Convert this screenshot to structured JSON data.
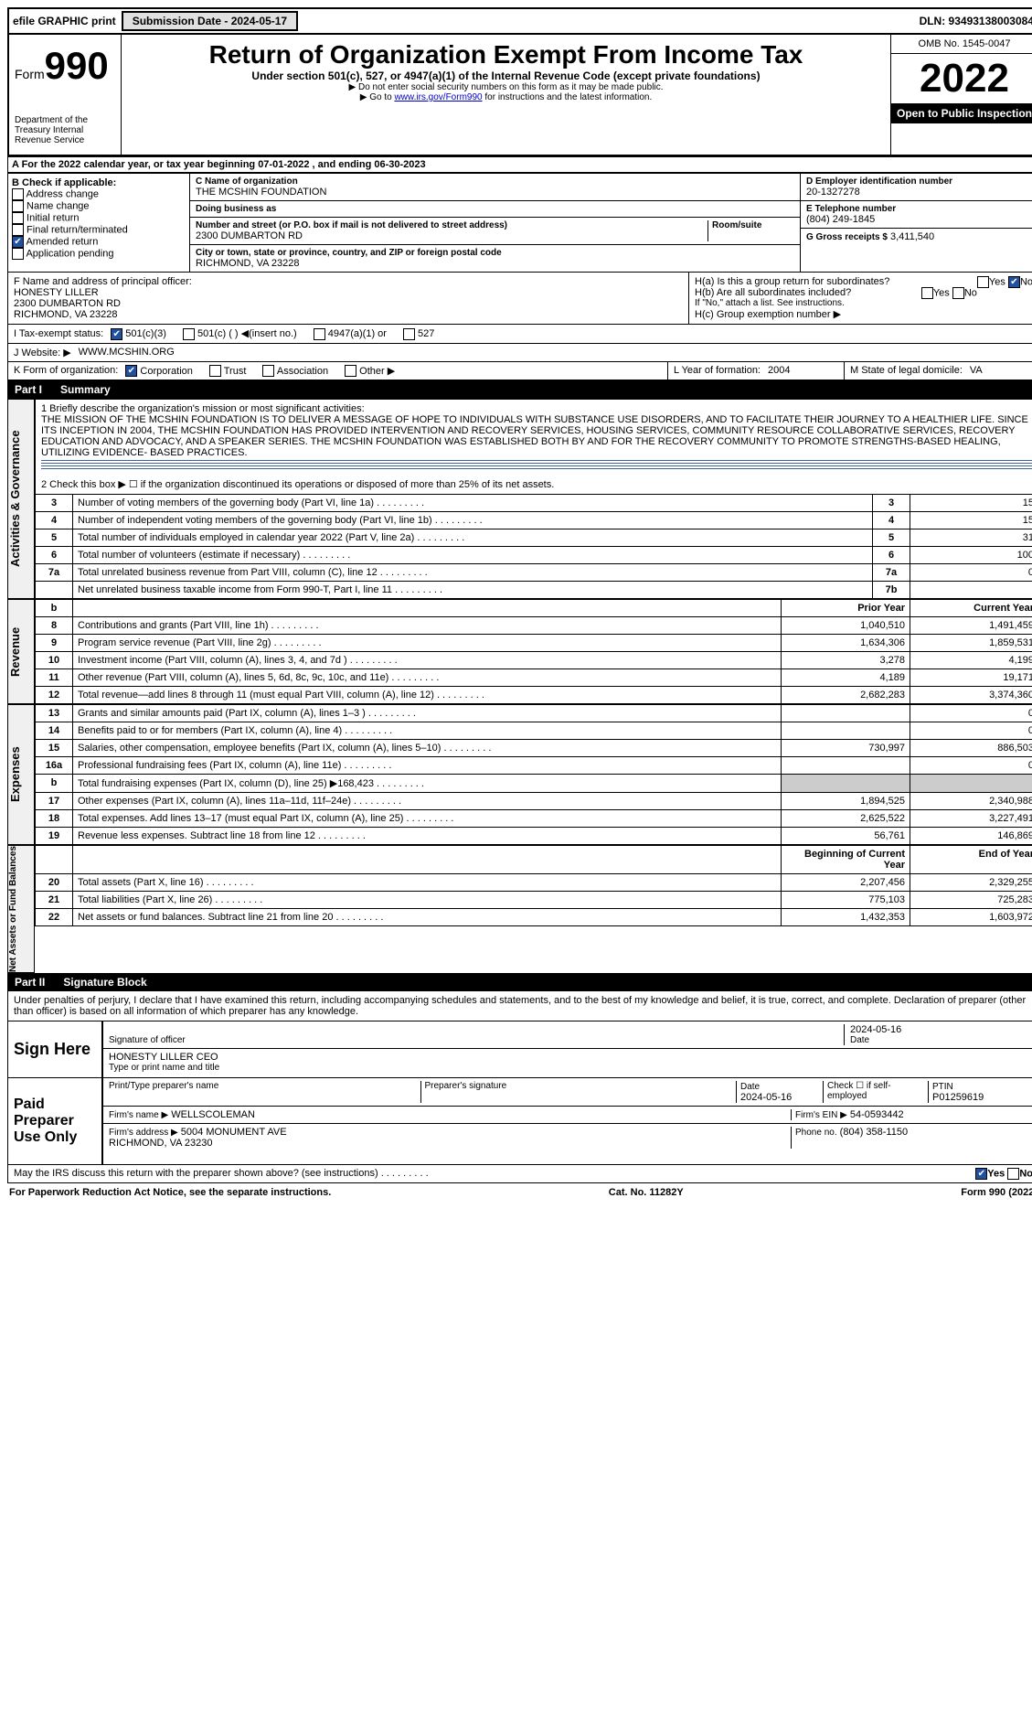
{
  "topbar": {
    "efile": "efile GRAPHIC print",
    "submit_btn": "Submission Date - 2024-05-17",
    "dln": "DLN: 93493138003084"
  },
  "header": {
    "form_label": "Form",
    "form_num": "990",
    "title": "Return of Organization Exempt From Income Tax",
    "sub1": "Under section 501(c), 527, or 4947(a)(1) of the Internal Revenue Code (except private foundations)",
    "sub2": "▶ Do not enter social security numbers on this form as it may be made public.",
    "sub3": "▶ Go to ",
    "link": "www.irs.gov/Form990",
    "sub3b": " for instructions and the latest information.",
    "omb": "OMB No. 1545-0047",
    "year": "2022",
    "open": "Open to Public Inspection",
    "dept": "Department of the Treasury\nInternal Revenue Service"
  },
  "rowA": {
    "text": "A For the 2022 calendar year, or tax year beginning 07-01-2022   , and ending 06-30-2023"
  },
  "boxB": {
    "title": "B Check if applicable:",
    "items": [
      "Address change",
      "Name change",
      "Initial return",
      "Final return/terminated",
      "Amended return",
      "Application pending"
    ],
    "checked": [
      false,
      false,
      false,
      false,
      true,
      false
    ]
  },
  "boxC": {
    "name_lbl": "C Name of organization",
    "name": "THE MCSHIN FOUNDATION",
    "dba_lbl": "Doing business as",
    "dba": "",
    "street_lbl": "Number and street (or P.O. box if mail is not delivered to street address)",
    "street": "2300 DUMBARTON RD",
    "suite_lbl": "Room/suite",
    "city_lbl": "City or town, state or province, country, and ZIP or foreign postal code",
    "city": "RICHMOND, VA  23228"
  },
  "boxD": {
    "lbl": "D Employer identification number",
    "val": "20-1327278"
  },
  "boxE": {
    "lbl": "E Telephone number",
    "val": "(804) 249-1845"
  },
  "boxG": {
    "lbl": "G Gross receipts $",
    "val": "3,411,540"
  },
  "boxF": {
    "lbl": "F  Name and address of principal officer:",
    "val": "HONESTY LILLER\n2300 DUMBARTON RD\nRICHMOND, VA  23228"
  },
  "boxH": {
    "a": "H(a)  Is this a group return for subordinates?",
    "a_yes": "Yes",
    "a_no": "No",
    "a_checked": "No",
    "b": "H(b)  Are all subordinates included?",
    "b_note": "If \"No,\" attach a list. See instructions.",
    "c": "H(c)  Group exemption number ▶"
  },
  "rowI": {
    "lbl": "I   Tax-exempt status:",
    "opts": [
      "501(c)(3)",
      "501(c) (   ) ◀(insert no.)",
      "4947(a)(1) or",
      "527"
    ],
    "checked": 0
  },
  "rowJ": {
    "lbl": "J   Website: ▶",
    "val": "WWW.MCSHIN.ORG"
  },
  "rowK": {
    "lbl": "K Form of organization:",
    "opts": [
      "Corporation",
      "Trust",
      "Association",
      "Other ▶"
    ],
    "checked": 0
  },
  "rowL": {
    "lbl": "L Year of formation:",
    "val": "2004"
  },
  "rowM": {
    "lbl": "M State of legal domicile:",
    "val": "VA"
  },
  "part1": {
    "num": "Part I",
    "title": "Summary"
  },
  "mission": {
    "q": "1  Briefly describe the organization's mission or most significant activities:",
    "text": "THE MISSION OF THE MCSHIN FOUNDATION IS TO DELIVER A MESSAGE OF HOPE TO INDIVIDUALS WITH SUBSTANCE USE DISORDERS, AND TO FACILITATE THEIR JOURNEY TO A HEALTHIER LIFE. SINCE ITS INCEPTION IN 2004, THE MCSHIN FOUNDATION HAS PROVIDED INTERVENTION AND RECOVERY SERVICES, HOUSING SERVICES, COMMUNITY RESOURCE COLLABORATIVE SERVICES, RECOVERY EDUCATION AND ADVOCACY, AND A SPEAKER SERIES. THE MCSHIN FOUNDATION WAS ESTABLISHED BOTH BY AND FOR THE RECOVERY COMMUNITY TO PROMOTE STRENGTHS-BASED HEALING, UTILIZING EVIDENCE- BASED PRACTICES."
  },
  "gov": {
    "side": "Activities & Governance",
    "l2": "2   Check this box ▶ ☐  if the organization discontinued its operations or disposed of more than 25% of its net assets.",
    "rows": [
      {
        "n": "3",
        "d": "Number of voting members of the governing body (Part VI, line 1a)",
        "box": "3",
        "v": "15"
      },
      {
        "n": "4",
        "d": "Number of independent voting members of the governing body (Part VI, line 1b)",
        "box": "4",
        "v": "15"
      },
      {
        "n": "5",
        "d": "Total number of individuals employed in calendar year 2022 (Part V, line 2a)",
        "box": "5",
        "v": "31"
      },
      {
        "n": "6",
        "d": "Total number of volunteers (estimate if necessary)",
        "box": "6",
        "v": "100"
      },
      {
        "n": "7a",
        "d": "Total unrelated business revenue from Part VIII, column (C), line 12",
        "box": "7a",
        "v": "0"
      },
      {
        "n": "",
        "d": "Net unrelated business taxable income from Form 990-T, Part I, line 11",
        "box": "7b",
        "v": ""
      }
    ]
  },
  "rev": {
    "side": "Revenue",
    "hdr": {
      "b": "b",
      "py": "Prior Year",
      "cy": "Current Year"
    },
    "rows": [
      {
        "n": "8",
        "d": "Contributions and grants (Part VIII, line 1h)",
        "py": "1,040,510",
        "cy": "1,491,459"
      },
      {
        "n": "9",
        "d": "Program service revenue (Part VIII, line 2g)",
        "py": "1,634,306",
        "cy": "1,859,531"
      },
      {
        "n": "10",
        "d": "Investment income (Part VIII, column (A), lines 3, 4, and 7d )",
        "py": "3,278",
        "cy": "4,199"
      },
      {
        "n": "11",
        "d": "Other revenue (Part VIII, column (A), lines 5, 6d, 8c, 9c, 10c, and 11e)",
        "py": "4,189",
        "cy": "19,171"
      },
      {
        "n": "12",
        "d": "Total revenue—add lines 8 through 11 (must equal Part VIII, column (A), line 12)",
        "py": "2,682,283",
        "cy": "3,374,360"
      }
    ]
  },
  "exp": {
    "side": "Expenses",
    "rows": [
      {
        "n": "13",
        "d": "Grants and similar amounts paid (Part IX, column (A), lines 1–3 )",
        "py": "",
        "cy": "0"
      },
      {
        "n": "14",
        "d": "Benefits paid to or for members (Part IX, column (A), line 4)",
        "py": "",
        "cy": "0"
      },
      {
        "n": "15",
        "d": "Salaries, other compensation, employee benefits (Part IX, column (A), lines 5–10)",
        "py": "730,997",
        "cy": "886,503"
      },
      {
        "n": "16a",
        "d": "Professional fundraising fees (Part IX, column (A), line 11e)",
        "py": "",
        "cy": "0"
      },
      {
        "n": "b",
        "d": "Total fundraising expenses (Part IX, column (D), line 25) ▶168,423",
        "py": "—",
        "cy": "—"
      },
      {
        "n": "17",
        "d": "Other expenses (Part IX, column (A), lines 11a–11d, 11f–24e)",
        "py": "1,894,525",
        "cy": "2,340,988"
      },
      {
        "n": "18",
        "d": "Total expenses. Add lines 13–17 (must equal Part IX, column (A), line 25)",
        "py": "2,625,522",
        "cy": "3,227,491"
      },
      {
        "n": "19",
        "d": "Revenue less expenses. Subtract line 18 from line 12",
        "py": "56,761",
        "cy": "146,869"
      }
    ]
  },
  "na": {
    "side": "Net Assets or Fund Balances",
    "hdr": {
      "py": "Beginning of Current Year",
      "cy": "End of Year"
    },
    "rows": [
      {
        "n": "20",
        "d": "Total assets (Part X, line 16)",
        "py": "2,207,456",
        "cy": "2,329,255"
      },
      {
        "n": "21",
        "d": "Total liabilities (Part X, line 26)",
        "py": "775,103",
        "cy": "725,283"
      },
      {
        "n": "22",
        "d": "Net assets or fund balances. Subtract line 21 from line 20",
        "py": "1,432,353",
        "cy": "1,603,972"
      }
    ]
  },
  "part2": {
    "num": "Part II",
    "title": "Signature Block"
  },
  "sig": {
    "perjury": "Under penalties of perjury, I declare that I have examined this return, including accompanying schedules and statements, and to the best of my knowledge and belief, it is true, correct, and complete. Declaration of preparer (other than officer) is based on all information of which preparer has any knowledge.",
    "sign_here": "Sign Here",
    "sig_officer": "Signature of officer",
    "date_lbl": "Date",
    "date": "2024-05-16",
    "name": "HONESTY LILLER CEO",
    "name_lbl": "Type or print name and title",
    "paid": "Paid Preparer Use Only",
    "prep_name_lbl": "Print/Type preparer's name",
    "prep_sig_lbl": "Preparer's signature",
    "prep_date": "2024-05-16",
    "check_lbl": "Check ☐ if self-employed",
    "ptin_lbl": "PTIN",
    "ptin": "P01259619",
    "firm_lbl": "Firm's name   ▶",
    "firm": "WELLSCOLEMAN",
    "ein_lbl": "Firm's EIN ▶",
    "ein": "54-0593442",
    "addr_lbl": "Firm's address ▶",
    "addr": "5004 MONUMENT AVE\nRICHMOND, VA  23230",
    "phone_lbl": "Phone no.",
    "phone": "(804) 358-1150",
    "discuss": "May the IRS discuss this return with the preparer shown above? (see instructions)",
    "discuss_checked": "Yes"
  },
  "footer": {
    "l": "For Paperwork Reduction Act Notice, see the separate instructions.",
    "c": "Cat. No. 11282Y",
    "r": "Form 990 (2022)"
  }
}
